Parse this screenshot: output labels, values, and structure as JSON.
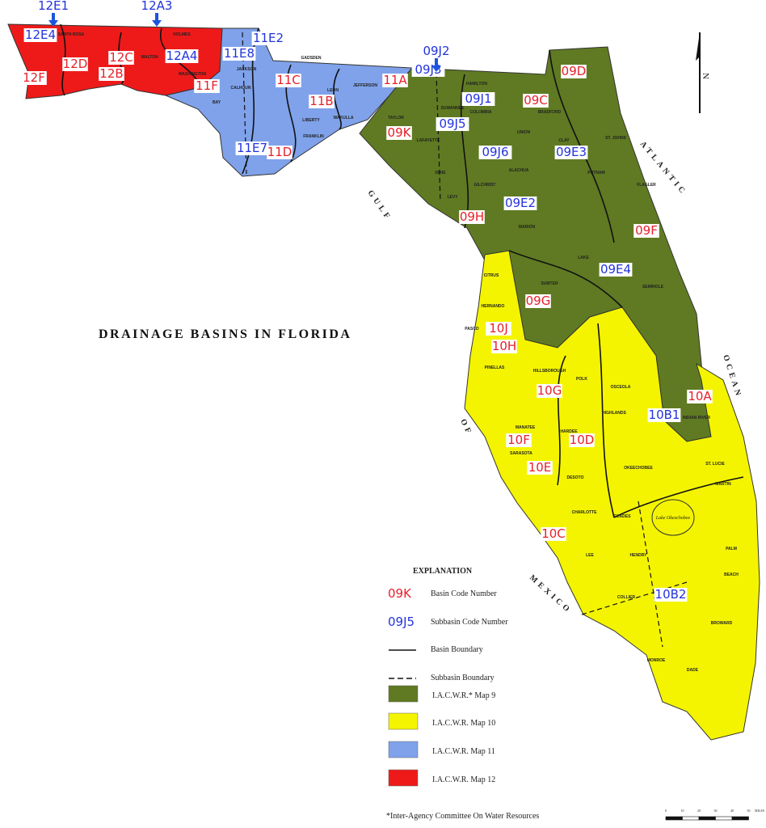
{
  "title": "DRAINAGE BASINS IN FLORIDA",
  "colors": {
    "map9": "#5f7a22",
    "map10": "#f4f400",
    "map11": "#7fa2ea",
    "map12": "#ee1a1a",
    "basin_code": "#e8202a",
    "subbasin_code": "#2233dd",
    "arrow": "#1a55e0"
  },
  "water_labels": {
    "gulf": "GULF",
    "of": "OF",
    "mexico": "MEXICO",
    "atlantic": "ATLANTIC",
    "ocean": "OCEAN",
    "lake": "Lake Okeechobee"
  },
  "north_label": "N",
  "arrow_labels": [
    "12E1",
    "12A3",
    "09J2"
  ],
  "basin_labels": [
    "12D",
    "12C",
    "12B",
    "12F",
    "11F",
    "11C",
    "11B",
    "11D",
    "11A",
    "09K",
    "09C",
    "09D",
    "09H",
    "09F",
    "09G",
    "10J",
    "10H",
    "10G",
    "10F",
    "10D",
    "10E",
    "10C",
    "10A"
  ],
  "subbasin_labels": [
    "12E4",
    "12A4",
    "11E2",
    "11E8",
    "11E7",
    "09J3",
    "09J1",
    "09J5",
    "09J6",
    "09E3",
    "09E2",
    "09E4",
    "10B1",
    "10B2"
  ],
  "counties": [
    "SANTA ROSA",
    "HOLMES",
    "WALTON",
    "WASHINGTON",
    "JACKSON",
    "CALHOUN",
    "BAY",
    "GADSDEN",
    "LEON",
    "WAKULLA",
    "JEFFERSON",
    "LIBERTY",
    "FRANKLIN",
    "TAYLOR",
    "HAMILTON",
    "SUWANNEE",
    "COLUMBIA",
    "LAFAYETTE",
    "UNION",
    "ALACHUA",
    "MARION",
    "PUTNAM",
    "FLAGLER",
    "CITRUS",
    "SUMTER",
    "LAKE",
    "SEMINOLE",
    "HERNANDO",
    "PASCO",
    "PINELLAS",
    "HILLSBOROUGH",
    "POLK",
    "OSCEOLA",
    "MANATEE",
    "HARDEE",
    "HIGHLANDS",
    "SARASOTA",
    "DESOTO",
    "CHARLOTTE",
    "GLADES",
    "OKEECHOBEE",
    "ST. LUCIE",
    "MARTIN",
    "LEE",
    "HENDRY",
    "PALM",
    "BEACH",
    "BROWARD",
    "COLLIER",
    "MONROE",
    "DADE",
    "INDIAN RIVER",
    "CLAY",
    "ST. JOHNS",
    "DIXIE",
    "LEVY",
    "GILCHRIST",
    "BRADFORD"
  ],
  "legend": {
    "heading": "EXPLANATION",
    "basin_sample": "09K",
    "basin_text": "Basin Code Number",
    "subbasin_sample": "09J5",
    "subbasin_text": "Subbasin Code Number",
    "basin_boundary": "Basin Boundary",
    "subbasin_boundary": "Subbasin Boundary",
    "map9": "I.A.C.W.R.* Map 9",
    "map10": "I.A.C.W.R. Map 10",
    "map11": "I.A.C.W.R. Map 11",
    "map12": "I.A.C.W.R. Map 12",
    "footnote": "*Inter-Agency Committee On Water Resources"
  },
  "scale": {
    "ticks": [
      "0",
      "10",
      "20",
      "30",
      "40",
      "50"
    ],
    "unit": "MILES"
  }
}
